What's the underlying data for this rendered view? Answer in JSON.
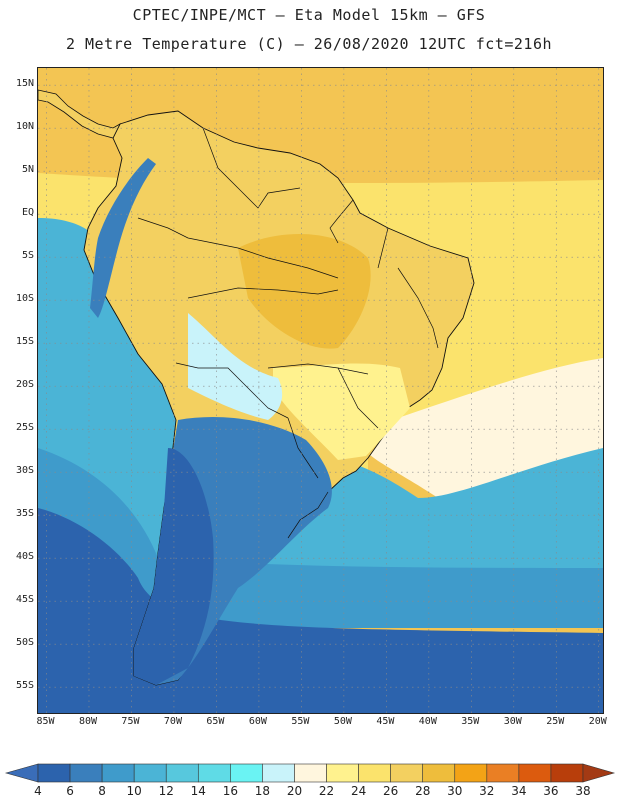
{
  "title": {
    "line1": "CPTEC/INPE/MCT –  Eta Model 15km – GFS",
    "line2": "2 Metre Temperature (C) – 26/08/2020 12UTC fct=216h"
  },
  "map": {
    "lon_range": [
      -86,
      -19.5
    ],
    "lat_range": [
      -58,
      17
    ],
    "lat_ticks": [
      {
        "value": 15,
        "label": "15N"
      },
      {
        "value": 10,
        "label": "10N"
      },
      {
        "value": 5,
        "label": "5N"
      },
      {
        "value": 0,
        "label": "EQ"
      },
      {
        "value": -5,
        "label": "5S"
      },
      {
        "value": -10,
        "label": "10S"
      },
      {
        "value": -15,
        "label": "15S"
      },
      {
        "value": -20,
        "label": "20S"
      },
      {
        "value": -25,
        "label": "25S"
      },
      {
        "value": -30,
        "label": "30S"
      },
      {
        "value": -35,
        "label": "35S"
      },
      {
        "value": -40,
        "label": "40S"
      },
      {
        "value": -45,
        "label": "45S"
      },
      {
        "value": -50,
        "label": "50S"
      },
      {
        "value": -55,
        "label": "55S"
      }
    ],
    "lon_ticks": [
      {
        "value": -85,
        "label": "85W"
      },
      {
        "value": -80,
        "label": "80W"
      },
      {
        "value": -75,
        "label": "75W"
      },
      {
        "value": -70,
        "label": "70W"
      },
      {
        "value": -65,
        "label": "65W"
      },
      {
        "value": -60,
        "label": "60W"
      },
      {
        "value": -55,
        "label": "55W"
      },
      {
        "value": -50,
        "label": "50W"
      },
      {
        "value": -45,
        "label": "45W"
      },
      {
        "value": -40,
        "label": "40W"
      },
      {
        "value": -35,
        "label": "35W"
      },
      {
        "value": -30,
        "label": "30W"
      },
      {
        "value": -25,
        "label": "25W"
      },
      {
        "value": -20,
        "label": "20W"
      }
    ]
  },
  "colorbar": {
    "labels": [
      "4",
      "6",
      "8",
      "10",
      "12",
      "14",
      "16",
      "18",
      "20",
      "22",
      "24",
      "26",
      "28",
      "30",
      "32",
      "34",
      "36",
      "38"
    ],
    "colors": [
      "#3a6db8",
      "#2c63ad",
      "#3a7fbc",
      "#3f9bcb",
      "#4bb4d6",
      "#57c8dd",
      "#5fdbe6",
      "#6af3f3",
      "#c9f3fa",
      "#fff6de",
      "#fff28e",
      "#fbe36c",
      "#f3d060",
      "#eebd3c",
      "#f3a316",
      "#ea7f24",
      "#dc5b0e",
      "#b83e0b",
      "#a33a14"
    ]
  },
  "regions": {
    "ocean_warm": "#f3c553",
    "ocean_mid": "#fbe36c",
    "ocean_cool": "#fff6de",
    "ocean_cold": "#4bb4d6",
    "ocean_colder": "#3f9bcb",
    "ocean_coldest": "#2c63ad",
    "land_hot": "#eebd3c",
    "land_warm": "#f3d060",
    "land_mild": "#fff28e",
    "land_cool": "#c9f3fa",
    "andes": "#3a7fbc",
    "patagonia": "#2c63ad"
  }
}
